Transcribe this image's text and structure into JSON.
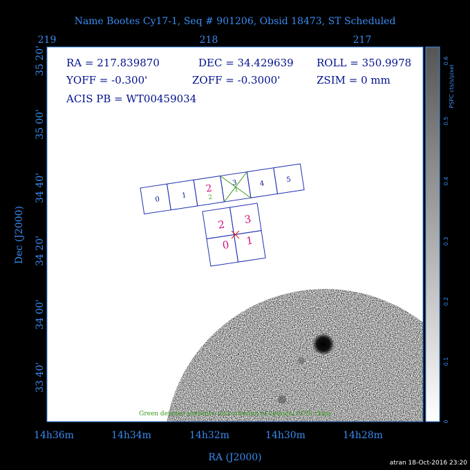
{
  "title": "Name Bootes Cy17-1, Seq # 901206, Obsid 18473, ST Scheduled",
  "axes": {
    "top_ticks": [
      "219",
      "218",
      "217"
    ],
    "left_ticks": [
      "35 20'",
      "35 00'",
      "34 40'",
      "34 20'",
      "34 00'",
      "33 40'"
    ],
    "bottom_ticks": [
      "14h36m",
      "14h34m",
      "14h32m",
      "14h30m",
      "14h28m"
    ],
    "x_label": "RA (J2000)",
    "y_label": "Dec (J2000)"
  },
  "colorbar": {
    "label": "PSPC cts/s/pixel",
    "ticks": [
      "0",
      "0.1",
      "0.2",
      "0.3",
      "0.4",
      "0.5",
      "0.6"
    ]
  },
  "info": {
    "ra": "RA = 217.839870",
    "dec": "DEC = 34.429639",
    "roll": "ROLL = 350.9978",
    "yoff": "YOFF =  -0.300'",
    "zoff": "ZOFF = -0.3000'",
    "zsim": "ZSIM = 0 mm",
    "acis_pb": "ACIS PB = WT00459034"
  },
  "chips": {
    "acis_s": [
      "0",
      "1",
      "2",
      "3",
      "4",
      "5"
    ],
    "acis_s_optional": [
      "2",
      "1"
    ],
    "acis_i": [
      "0",
      "1",
      "2",
      "3"
    ]
  },
  "note": "Green denotes presence and ordering of optional ACIS chips",
  "footer": "atran 18-Oct-2016 23:20"
}
